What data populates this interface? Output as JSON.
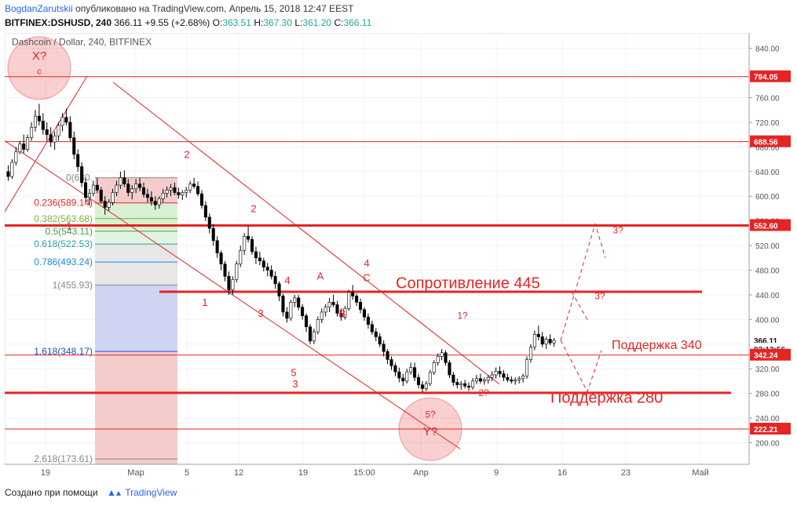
{
  "header": {
    "author": "BogdanZarutskii",
    "published": "опубликовано на TradingView.com, Апрель 15, 2018 12:47 EEST",
    "symbol": "BITFINEX:DSHUSD, 240",
    "last": "366.11",
    "change": "+9.55 (+2.68%)",
    "o_label": "O:",
    "o": "363.51",
    "h_label": "H:",
    "h": "367.30",
    "l_label": "L:",
    "l": "361.20",
    "c_label": "C:",
    "c": "366.11"
  },
  "chart_title": "Dashcoin / Dollar, 240, BITFINEX",
  "footer": {
    "created": "Создано при помощи",
    "brand": "TradingView"
  },
  "colors": {
    "red": "#e52424",
    "candle": "#000000",
    "grid": "#f0f3f7",
    "axis": "#888888",
    "fib_red": "#f4c7c7",
    "fib_green": "#d4f0cf",
    "fib_gray": "#e4e4e4",
    "fib_blue": "#cbcff2"
  },
  "chart_data": {
    "type": "candlestick",
    "y_axis": {
      "ticks": [
        840,
        800,
        760,
        720,
        680,
        640,
        600,
        560,
        520,
        480,
        440,
        400,
        360,
        320,
        280,
        240,
        200
      ],
      "range": [
        165,
        865
      ]
    },
    "x_axis": {
      "ticks": [
        "19",
        "Мар",
        "5",
        "12",
        "19",
        "15:00",
        "Апр",
        "9",
        "16",
        "23",
        "Май"
      ]
    },
    "price_markers": [
      {
        "label": "794.05",
        "value": 794.05,
        "style": "red"
      },
      {
        "label": "688.56",
        "value": 688.56,
        "style": "red"
      },
      {
        "label": "552.60",
        "value": 552.6,
        "style": "red"
      },
      {
        "label": "366.11",
        "value": 366.11,
        "style": "dark"
      },
      {
        "label": "02:12:56",
        "value": 352,
        "style": "light"
      },
      {
        "label": "342.24",
        "value": 342.24,
        "style": "red"
      },
      {
        "label": "222.21",
        "value": 222.21,
        "style": "red"
      }
    ],
    "fib_levels": [
      {
        "label": "0(630.",
        "value": 630
      },
      {
        "label": "0.236(589.14)",
        "value": 589.14
      },
      {
        "label": "0.382(563.68)",
        "value": 563.68
      },
      {
        "label": "0.5(543.11)",
        "value": 543.11
      },
      {
        "label": "0.618(522.53)",
        "value": 522.53
      },
      {
        "label": "0.786(493.24)",
        "value": 493.24
      },
      {
        "label": "1(455.93)",
        "value": 455.93
      },
      {
        "label": "1.618(348.17)",
        "value": 348.17
      },
      {
        "label": "2.618(173.61)",
        "value": 173.61
      }
    ],
    "candles": [
      [
        640,
        650,
        625,
        632
      ],
      [
        632,
        660,
        628,
        655
      ],
      [
        655,
        680,
        650,
        672
      ],
      [
        672,
        690,
        668,
        685
      ],
      [
        685,
        700,
        670,
        676
      ],
      [
        676,
        700,
        672,
        695
      ],
      [
        695,
        720,
        690,
        712
      ],
      [
        712,
        740,
        705,
        730
      ],
      [
        730,
        750,
        715,
        722
      ],
      [
        722,
        735,
        700,
        708
      ],
      [
        708,
        720,
        690,
        700
      ],
      [
        700,
        712,
        680,
        688
      ],
      [
        688,
        705,
        675,
        698
      ],
      [
        698,
        720,
        690,
        715
      ],
      [
        715,
        735,
        705,
        728
      ],
      [
        728,
        742,
        715,
        720
      ],
      [
        720,
        730,
        690,
        695
      ],
      [
        695,
        705,
        660,
        668
      ],
      [
        668,
        676,
        640,
        648
      ],
      [
        648,
        655,
        615,
        622
      ],
      [
        622,
        630,
        590,
        598
      ],
      [
        598,
        612,
        585,
        605
      ],
      [
        605,
        625,
        600,
        618
      ],
      [
        618,
        630,
        605,
        610
      ],
      [
        610,
        615,
        588,
        592
      ],
      [
        592,
        600,
        570,
        582
      ],
      [
        582,
        595,
        576,
        590
      ],
      [
        590,
        612,
        585,
        606
      ],
      [
        606,
        625,
        600,
        618
      ],
      [
        618,
        640,
        612,
        630
      ],
      [
        630,
        642,
        615,
        620
      ],
      [
        620,
        628,
        600,
        606
      ],
      [
        606,
        618,
        595,
        612
      ],
      [
        612,
        628,
        605,
        620
      ],
      [
        620,
        630,
        608,
        614
      ],
      [
        614,
        622,
        598,
        603
      ],
      [
        603,
        612,
        590,
        598
      ],
      [
        598,
        608,
        585,
        592
      ],
      [
        592,
        600,
        578,
        586
      ],
      [
        586,
        600,
        580,
        596
      ],
      [
        596,
        612,
        590,
        605
      ],
      [
        605,
        616,
        598,
        610
      ],
      [
        610,
        620,
        600,
        614
      ],
      [
        614,
        622,
        602,
        606
      ],
      [
        606,
        614,
        596,
        602
      ],
      [
        602,
        610,
        594,
        606
      ],
      [
        606,
        615,
        598,
        610
      ],
      [
        610,
        625,
        605,
        620
      ],
      [
        620,
        630,
        612,
        616
      ],
      [
        616,
        624,
        600,
        604
      ],
      [
        604,
        610,
        580,
        585
      ],
      [
        585,
        592,
        560,
        566
      ],
      [
        566,
        572,
        540,
        548
      ],
      [
        548,
        555,
        520,
        528
      ],
      [
        528,
        535,
        500,
        508
      ],
      [
        508,
        512,
        480,
        490
      ],
      [
        490,
        495,
        462,
        470
      ],
      [
        470,
        478,
        440,
        448
      ],
      [
        448,
        470,
        440,
        465
      ],
      [
        465,
        495,
        460,
        490
      ],
      [
        490,
        520,
        485,
        512
      ],
      [
        512,
        540,
        505,
        535
      ],
      [
        535,
        552,
        525,
        530
      ],
      [
        530,
        535,
        505,
        510
      ],
      [
        510,
        518,
        490,
        500
      ],
      [
        500,
        510,
        488,
        495
      ],
      [
        495,
        500,
        478,
        485
      ],
      [
        485,
        492,
        470,
        480
      ],
      [
        480,
        488,
        465,
        470
      ],
      [
        470,
        478,
        450,
        458
      ],
      [
        458,
        462,
        430,
        438
      ],
      [
        438,
        442,
        405,
        412
      ],
      [
        412,
        420,
        395,
        402
      ],
      [
        402,
        432,
        398,
        428
      ],
      [
        428,
        440,
        420,
        435
      ],
      [
        435,
        440,
        415,
        420
      ],
      [
        420,
        425,
        400,
        406
      ],
      [
        406,
        410,
        380,
        388
      ],
      [
        388,
        392,
        360,
        365
      ],
      [
        365,
        385,
        360,
        380
      ],
      [
        380,
        405,
        376,
        400
      ],
      [
        400,
        418,
        394,
        412
      ],
      [
        412,
        425,
        405,
        420
      ],
      [
        420,
        435,
        412,
        428
      ],
      [
        428,
        440,
        420,
        424
      ],
      [
        424,
        430,
        405,
        410
      ],
      [
        410,
        418,
        398,
        404
      ],
      [
        404,
        422,
        400,
        418
      ],
      [
        418,
        448,
        414,
        444
      ],
      [
        444,
        456,
        432,
        438
      ],
      [
        438,
        442,
        422,
        428
      ],
      [
        428,
        434,
        410,
        416
      ],
      [
        416,
        420,
        398,
        404
      ],
      [
        404,
        410,
        385,
        392
      ],
      [
        392,
        398,
        375,
        380
      ],
      [
        380,
        386,
        365,
        372
      ],
      [
        372,
        378,
        355,
        360
      ],
      [
        360,
        366,
        340,
        348
      ],
      [
        348,
        352,
        328,
        335
      ],
      [
        335,
        340,
        318,
        325
      ],
      [
        325,
        330,
        308,
        315
      ],
      [
        315,
        322,
        298,
        305
      ],
      [
        305,
        312,
        292,
        300
      ],
      [
        300,
        320,
        296,
        315
      ],
      [
        315,
        330,
        310,
        322
      ],
      [
        322,
        330,
        300,
        306
      ],
      [
        306,
        312,
        288,
        294
      ],
      [
        294,
        300,
        282,
        288
      ],
      [
        288,
        300,
        284,
        296
      ],
      [
        296,
        318,
        292,
        314
      ],
      [
        314,
        334,
        310,
        330
      ],
      [
        330,
        345,
        325,
        340
      ],
      [
        340,
        352,
        334,
        346
      ],
      [
        346,
        350,
        325,
        330
      ],
      [
        330,
        334,
        305,
        310
      ],
      [
        310,
        315,
        292,
        298
      ],
      [
        298,
        304,
        288,
        294
      ],
      [
        294,
        300,
        286,
        296
      ],
      [
        296,
        302,
        288,
        292
      ],
      [
        292,
        298,
        284,
        290
      ],
      [
        290,
        305,
        286,
        300
      ],
      [
        300,
        310,
        295,
        304
      ],
      [
        304,
        312,
        296,
        300
      ],
      [
        300,
        306,
        294,
        302
      ],
      [
        302,
        310,
        296,
        306
      ],
      [
        306,
        316,
        300,
        310
      ],
      [
        310,
        322,
        304,
        316
      ],
      [
        316,
        324,
        306,
        312
      ],
      [
        312,
        318,
        300,
        306
      ],
      [
        306,
        312,
        298,
        302
      ],
      [
        302,
        308,
        296,
        300
      ],
      [
        300,
        306,
        294,
        302
      ],
      [
        302,
        308,
        296,
        304
      ],
      [
        304,
        312,
        298,
        308
      ],
      [
        308,
        340,
        304,
        335
      ],
      [
        335,
        360,
        330,
        355
      ],
      [
        355,
        382,
        350,
        376
      ],
      [
        376,
        390,
        366,
        372
      ],
      [
        372,
        380,
        355,
        360
      ],
      [
        360,
        372,
        352,
        368
      ],
      [
        368,
        376,
        358,
        362
      ],
      [
        362,
        370,
        356,
        366
      ]
    ],
    "x_start_frac": 0.0,
    "x_end_frac": 0.745,
    "annotations_text": {
      "xq": "X?",
      "c1": "c",
      "yq": "Y?",
      "w5q": "5?",
      "n2a": "2",
      "n2b": "2",
      "n1a": "1",
      "n1b": "1",
      "n3a": "3",
      "n3b": "3",
      "n4a": "4",
      "n4b": "4",
      "n5": "5",
      "A": "A",
      "B": "B",
      "C": "C",
      "q1": "1?",
      "q2": "2?",
      "q3a": "3?",
      "q3b": "3?"
    },
    "resistance_label": "Сопротивление 445",
    "support340_label": "Поддержка 340",
    "support280_label": "Поддержка 280"
  }
}
